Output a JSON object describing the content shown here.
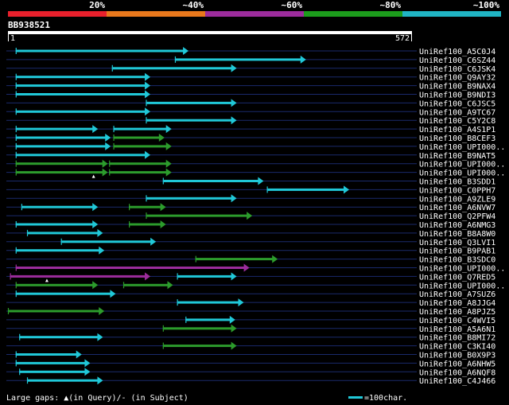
{
  "chart_data": {
    "type": "alignment-map",
    "query": {
      "id": "BB938521",
      "start": 1,
      "end": 572
    },
    "identity_scale": [
      {
        "label": "20%",
        "color": "#e8202c"
      },
      {
        "label": "~40%",
        "color": "#e8781c"
      },
      {
        "label": "~60%",
        "color": "#9c2c9c"
      },
      {
        "label": "~80%",
        "color": "#1c9c1c"
      },
      {
        "label": "~100%",
        "color": "#20b4c4"
      }
    ],
    "hits": [
      {
        "name": "UniRef100_A5C0J4",
        "segments": [
          {
            "start": 12,
            "end": 254,
            "color": "cyan"
          }
        ]
      },
      {
        "name": "UniRef100_C6SZ44",
        "segments": [
          {
            "start": 237,
            "end": 420,
            "color": "cyan"
          }
        ]
      },
      {
        "name": "UniRef100_C6JSK4",
        "segments": [
          {
            "start": 148,
            "end": 322,
            "color": "cyan"
          }
        ]
      },
      {
        "name": "UniRef100_Q9AY32",
        "segments": [
          {
            "start": 12,
            "end": 200,
            "color": "cyan"
          }
        ]
      },
      {
        "name": "UniRef100_B9NAX4",
        "segments": [
          {
            "start": 12,
            "end": 200,
            "color": "cyan"
          }
        ]
      },
      {
        "name": "UniRef100_B9NDI3",
        "segments": [
          {
            "start": 12,
            "end": 200,
            "color": "cyan"
          }
        ]
      },
      {
        "name": "UniRef100_C6JSC5",
        "segments": [
          {
            "start": 196,
            "end": 322,
            "color": "cyan"
          }
        ]
      },
      {
        "name": "UniRef100_A9TC67",
        "segments": [
          {
            "start": 12,
            "end": 200,
            "color": "cyan"
          }
        ]
      },
      {
        "name": "UniRef100_C5Y2C8",
        "segments": [
          {
            "start": 196,
            "end": 322,
            "color": "cyan"
          }
        ]
      },
      {
        "name": "UniRef100_A4S1P1",
        "segments": [
          {
            "start": 12,
            "end": 126,
            "color": "cyan"
          },
          {
            "start": 150,
            "end": 230,
            "color": "cyan"
          }
        ]
      },
      {
        "name": "UniRef100_B8CEF3",
        "segments": [
          {
            "start": 12,
            "end": 144,
            "color": "cyan"
          },
          {
            "start": 150,
            "end": 220,
            "color": "green"
          }
        ]
      },
      {
        "name": "UniRef100_UPI000..",
        "segments": [
          {
            "start": 12,
            "end": 144,
            "color": "cyan"
          },
          {
            "start": 150,
            "end": 230,
            "color": "green"
          }
        ]
      },
      {
        "name": "UniRef100_B9NAT5",
        "segments": [
          {
            "start": 12,
            "end": 200,
            "color": "cyan"
          }
        ]
      },
      {
        "name": "UniRef100_UPI000..",
        "segments": [
          {
            "start": 12,
            "end": 140,
            "color": "green"
          },
          {
            "start": 144,
            "end": 230,
            "color": "green"
          }
        ]
      },
      {
        "name": "UniRef100_UPI000..",
        "segments": [
          {
            "start": 12,
            "end": 140,
            "color": "green"
          },
          {
            "start": 144,
            "end": 230,
            "color": "green"
          }
        ],
        "gap_marker": 122
      },
      {
        "name": "UniRef100_B3SDD1",
        "segments": [
          {
            "start": 220,
            "end": 360,
            "color": "cyan"
          }
        ]
      },
      {
        "name": "UniRef100_C0PPH7",
        "segments": [
          {
            "start": 367,
            "end": 481,
            "color": "cyan"
          }
        ]
      },
      {
        "name": "UniRef100_A9ZLE9",
        "segments": [
          {
            "start": 196,
            "end": 322,
            "color": "cyan"
          }
        ]
      },
      {
        "name": "UniRef100_A6NVW7",
        "segments": [
          {
            "start": 20,
            "end": 126,
            "color": "cyan"
          },
          {
            "start": 172,
            "end": 222,
            "color": "green"
          }
        ]
      },
      {
        "name": "UniRef100_Q2PFW4",
        "segments": [
          {
            "start": 196,
            "end": 344,
            "color": "green"
          }
        ]
      },
      {
        "name": "UniRef100_A6NMG3",
        "segments": [
          {
            "start": 12,
            "end": 126,
            "color": "cyan"
          },
          {
            "start": 172,
            "end": 222,
            "color": "green"
          }
        ]
      },
      {
        "name": "UniRef100_B8A8W0",
        "segments": [
          {
            "start": 28,
            "end": 133,
            "color": "cyan"
          }
        ]
      },
      {
        "name": "UniRef100_Q3LVI1",
        "segments": [
          {
            "start": 76,
            "end": 208,
            "color": "cyan"
          }
        ]
      },
      {
        "name": "UniRef100_B9PAB1",
        "segments": [
          {
            "start": 12,
            "end": 135,
            "color": "cyan"
          }
        ]
      },
      {
        "name": "UniRef100_B3SDC0",
        "segments": [
          {
            "start": 266,
            "end": 380,
            "color": "green"
          }
        ]
      },
      {
        "name": "UniRef100_UPI000..",
        "segments": [
          {
            "start": 12,
            "end": 340,
            "color": "purple"
          }
        ]
      },
      {
        "name": "UniRef100_Q7RED5",
        "segments": [
          {
            "start": 4,
            "end": 200,
            "color": "purple"
          },
          {
            "start": 240,
            "end": 322,
            "color": "cyan"
          }
        ],
        "gap_marker": 56
      },
      {
        "name": "UniRef100_UPI000..",
        "segments": [
          {
            "start": 12,
            "end": 126,
            "color": "green"
          },
          {
            "start": 164,
            "end": 232,
            "color": "green"
          }
        ]
      },
      {
        "name": "UniRef100_A7SUZ6",
        "segments": [
          {
            "start": 12,
            "end": 151,
            "color": "cyan"
          }
        ]
      },
      {
        "name": "UniRef100_A8JJG4",
        "segments": [
          {
            "start": 240,
            "end": 332,
            "color": "cyan"
          }
        ]
      },
      {
        "name": "UniRef100_A8PJZ5",
        "segments": [
          {
            "start": 1,
            "end": 135,
            "color": "green"
          }
        ]
      },
      {
        "name": "UniRef100_C4WVI5",
        "segments": [
          {
            "start": 252,
            "end": 320,
            "color": "cyan"
          }
        ]
      },
      {
        "name": "UniRef100_A5A6N1",
        "segments": [
          {
            "start": 220,
            "end": 322,
            "color": "green"
          }
        ]
      },
      {
        "name": "UniRef100_B8MI72",
        "segments": [
          {
            "start": 17,
            "end": 133,
            "color": "cyan"
          }
        ]
      },
      {
        "name": "UniRef100_C3KI40",
        "segments": [
          {
            "start": 220,
            "end": 322,
            "color": "green"
          }
        ]
      },
      {
        "name": "UniRef100_B0X9P3",
        "segments": [
          {
            "start": 12,
            "end": 103,
            "color": "cyan"
          }
        ]
      },
      {
        "name": "UniRef100_A6NHW5",
        "segments": [
          {
            "start": 12,
            "end": 115,
            "color": "cyan"
          }
        ]
      },
      {
        "name": "UniRef100_A6NQF8",
        "segments": [
          {
            "start": 17,
            "end": 115,
            "color": "cyan"
          }
        ]
      },
      {
        "name": "UniRef100_C4J466",
        "segments": [
          {
            "start": 28,
            "end": 133,
            "color": "cyan"
          }
        ]
      }
    ],
    "segment_colors": {
      "cyan": "#20c8d8",
      "green": "#2c9c2c",
      "purple": "#9c2c9c"
    },
    "footer": {
      "gap_text": "Large gaps: ▲(in Query)/- (in Subject)",
      "scale_text": "=100char.",
      "scale_chars": 100
    }
  }
}
